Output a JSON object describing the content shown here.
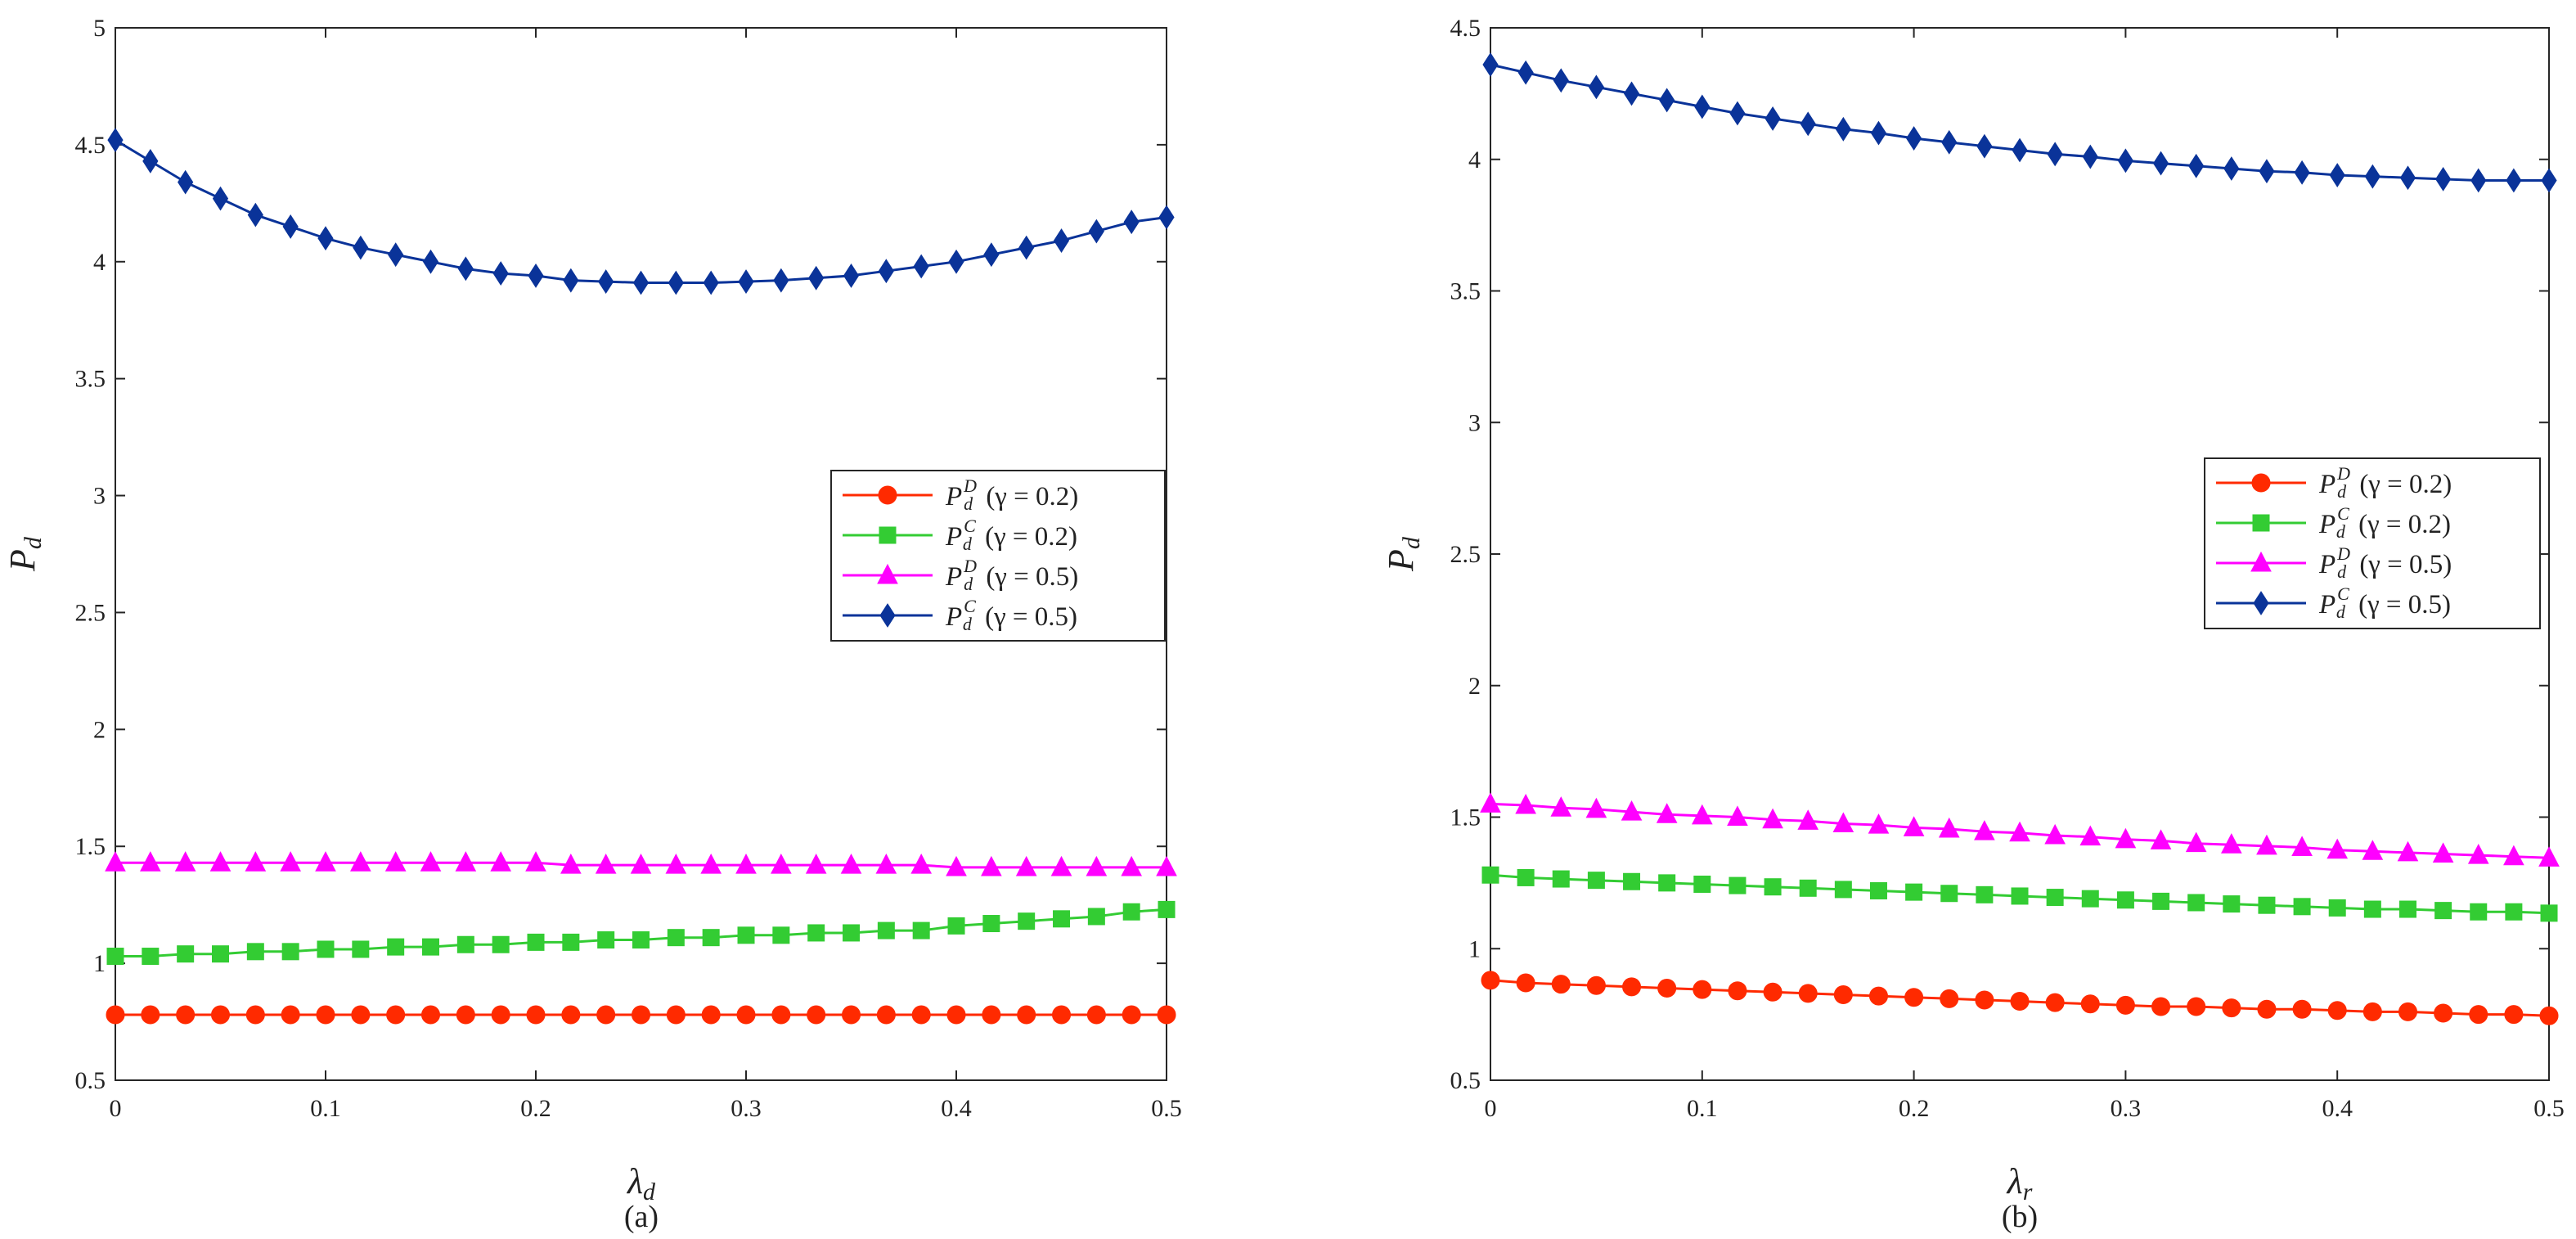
{
  "chart_data": [
    {
      "type": "line",
      "caption": "(a)",
      "xlabel": "λ",
      "xlabel_sub": "d",
      "ylabel": "P",
      "ylabel_sub": "d",
      "xlim": [
        0,
        0.5
      ],
      "ylim": [
        0.5,
        5
      ],
      "xticks": [
        0,
        0.1,
        0.2,
        0.3,
        0.4,
        0.5
      ],
      "xtick_labels": [
        "0",
        "0.1",
        "0.2",
        "0.3",
        "0.4",
        "0.5"
      ],
      "yticks": [
        0.5,
        1,
        1.5,
        2,
        2.5,
        3,
        3.5,
        4,
        4.5,
        5
      ],
      "ytick_labels": [
        "0.5",
        "1",
        "1.5",
        "2",
        "2.5",
        "3",
        "3.5",
        "4",
        "4.5",
        "5"
      ],
      "legend_position": "right-middle",
      "series": [
        {
          "name": "P_d^D (γ = 0.2)",
          "base": "P",
          "sub": "d",
          "sup": "D",
          "gamma_text": "(γ = 0.2)",
          "color": "#ff2a00",
          "marker": "circle",
          "x0": 0,
          "dx": 0.016667,
          "values": [
            0.78,
            0.78,
            0.78,
            0.78,
            0.78,
            0.78,
            0.78,
            0.78,
            0.78,
            0.78,
            0.78,
            0.78,
            0.78,
            0.78,
            0.78,
            0.78,
            0.78,
            0.78,
            0.78,
            0.78,
            0.78,
            0.78,
            0.78,
            0.78,
            0.78,
            0.78,
            0.78,
            0.78,
            0.78,
            0.78,
            0.78
          ]
        },
        {
          "name": "P_d^C (γ = 0.2)",
          "base": "P",
          "sub": "d",
          "sup": "C",
          "gamma_text": "(γ = 0.2)",
          "color": "#33cc33",
          "marker": "square",
          "x0": 0,
          "dx": 0.016667,
          "values": [
            1.03,
            1.03,
            1.04,
            1.04,
            1.05,
            1.05,
            1.06,
            1.06,
            1.07,
            1.07,
            1.08,
            1.08,
            1.09,
            1.09,
            1.1,
            1.1,
            1.11,
            1.11,
            1.12,
            1.12,
            1.13,
            1.13,
            1.14,
            1.14,
            1.16,
            1.17,
            1.18,
            1.19,
            1.2,
            1.22,
            1.23
          ]
        },
        {
          "name": "P_d^D (γ = 0.5)",
          "base": "P",
          "sub": "d",
          "sup": "D",
          "gamma_text": "(γ = 0.5)",
          "color": "#ff00ff",
          "marker": "triangle",
          "x0": 0,
          "dx": 0.016667,
          "values": [
            1.43,
            1.43,
            1.43,
            1.43,
            1.43,
            1.43,
            1.43,
            1.43,
            1.43,
            1.43,
            1.43,
            1.43,
            1.43,
            1.42,
            1.42,
            1.42,
            1.42,
            1.42,
            1.42,
            1.42,
            1.42,
            1.42,
            1.42,
            1.42,
            1.41,
            1.41,
            1.41,
            1.41,
            1.41,
            1.41,
            1.41
          ]
        },
        {
          "name": "P_d^C (γ = 0.5)",
          "base": "P",
          "sub": "d",
          "sup": "C",
          "gamma_text": "(γ = 0.5)",
          "color": "#0a3399",
          "marker": "diamond",
          "x0": 0,
          "dx": 0.016667,
          "values": [
            4.52,
            4.43,
            4.34,
            4.27,
            4.2,
            4.15,
            4.1,
            4.06,
            4.03,
            4.0,
            3.97,
            3.95,
            3.94,
            3.92,
            3.915,
            3.91,
            3.91,
            3.91,
            3.915,
            3.92,
            3.93,
            3.94,
            3.96,
            3.98,
            4.0,
            4.03,
            4.06,
            4.09,
            4.13,
            4.17,
            4.19
          ]
        }
      ]
    },
    {
      "type": "line",
      "caption": "(b)",
      "xlabel": "λ",
      "xlabel_sub": "r",
      "ylabel": "P",
      "ylabel_sub": "d",
      "xlim": [
        0,
        0.5
      ],
      "ylim": [
        0.5,
        4.5
      ],
      "xticks": [
        0,
        0.1,
        0.2,
        0.3,
        0.4,
        0.5
      ],
      "xtick_labels": [
        "0",
        "0.1",
        "0.2",
        "0.3",
        "0.4",
        "0.5"
      ],
      "yticks": [
        0.5,
        1,
        1.5,
        2,
        2.5,
        3,
        3.5,
        4,
        4.5
      ],
      "ytick_labels": [
        "0.5",
        "1",
        "1.5",
        "2",
        "2.5",
        "3",
        "3.5",
        "4",
        "4.5"
      ],
      "legend_position": "right-middle",
      "series": [
        {
          "name": "P_d^D (γ = 0.2)",
          "base": "P",
          "sub": "d",
          "sup": "D",
          "gamma_text": "(γ = 0.2)",
          "color": "#ff2a00",
          "marker": "circle",
          "x0": 0,
          "dx": 0.016667,
          "values": [
            0.88,
            0.87,
            0.865,
            0.86,
            0.855,
            0.85,
            0.845,
            0.84,
            0.835,
            0.83,
            0.825,
            0.82,
            0.815,
            0.81,
            0.805,
            0.8,
            0.795,
            0.79,
            0.785,
            0.78,
            0.78,
            0.775,
            0.77,
            0.77,
            0.765,
            0.76,
            0.76,
            0.755,
            0.75,
            0.75,
            0.745
          ]
        },
        {
          "name": "P_d^C (γ = 0.2)",
          "base": "P",
          "sub": "d",
          "sup": "C",
          "gamma_text": "(γ = 0.2)",
          "color": "#33cc33",
          "marker": "square",
          "x0": 0,
          "dx": 0.016667,
          "values": [
            1.28,
            1.27,
            1.265,
            1.26,
            1.255,
            1.25,
            1.245,
            1.24,
            1.235,
            1.23,
            1.225,
            1.22,
            1.215,
            1.21,
            1.205,
            1.2,
            1.195,
            1.19,
            1.185,
            1.18,
            1.175,
            1.17,
            1.165,
            1.16,
            1.155,
            1.15,
            1.15,
            1.145,
            1.14,
            1.14,
            1.135
          ]
        },
        {
          "name": "P_d^D (γ = 0.5)",
          "base": "P",
          "sub": "d",
          "sup": "D",
          "gamma_text": "(γ = 0.5)",
          "color": "#ff00ff",
          "marker": "triangle",
          "x0": 0,
          "dx": 0.016667,
          "values": [
            1.55,
            1.545,
            1.535,
            1.53,
            1.52,
            1.51,
            1.505,
            1.5,
            1.49,
            1.485,
            1.475,
            1.47,
            1.46,
            1.455,
            1.445,
            1.44,
            1.43,
            1.425,
            1.415,
            1.41,
            1.4,
            1.395,
            1.39,
            1.385,
            1.375,
            1.37,
            1.365,
            1.36,
            1.355,
            1.35,
            1.345
          ]
        },
        {
          "name": "P_d^C (γ = 0.5)",
          "base": "P",
          "sub": "d",
          "sup": "C",
          "gamma_text": "(γ = 0.5)",
          "color": "#0a3399",
          "marker": "diamond",
          "x0": 0,
          "dx": 0.016667,
          "values": [
            4.36,
            4.33,
            4.3,
            4.275,
            4.25,
            4.225,
            4.2,
            4.175,
            4.155,
            4.135,
            4.115,
            4.1,
            4.08,
            4.065,
            4.05,
            4.035,
            4.02,
            4.01,
            3.995,
            3.985,
            3.975,
            3.965,
            3.955,
            3.95,
            3.94,
            3.935,
            3.93,
            3.925,
            3.92,
            3.92,
            3.92
          ]
        }
      ]
    }
  ]
}
